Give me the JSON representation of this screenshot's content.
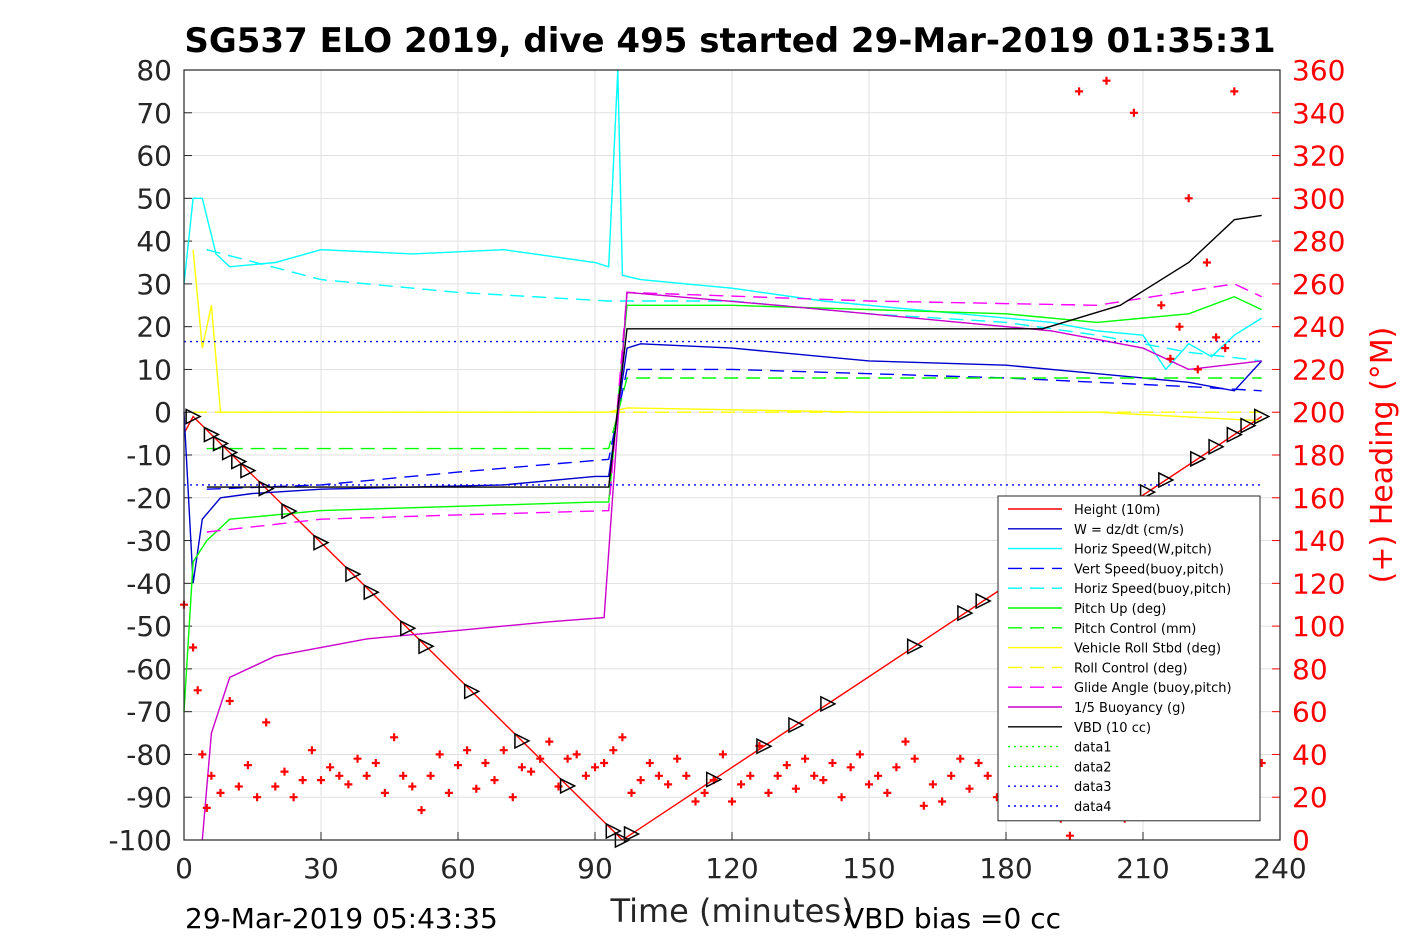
{
  "chart_data": {
    "type": "line",
    "title": "SG537 ELO 2019, dive 495 started 29-Mar-2019 01:35:31",
    "xlabel": "Time (minutes)",
    "ylabel": "",
    "ylabel_right": "(+) Heading (°M)",
    "xlim": [
      0,
      240
    ],
    "ylim": [
      -100,
      80
    ],
    "ylim_right": [
      0,
      360
    ],
    "xticks": [
      "0",
      "30",
      "60",
      "90",
      "120",
      "150",
      "180",
      "210",
      "240"
    ],
    "yticks": [
      "80",
      "70",
      "60",
      "50",
      "40",
      "30",
      "20",
      "10",
      "0",
      "-10",
      "-20",
      "-30",
      "-40",
      "-50",
      "-60",
      "-70",
      "-80",
      "-90",
      "-100"
    ],
    "yticks_right": [
      "360",
      "340",
      "320",
      "300",
      "280",
      "260",
      "240",
      "220",
      "200",
      "180",
      "160",
      "140",
      "120",
      "100",
      "80",
      "60",
      "40",
      "20",
      "0"
    ],
    "grid": true,
    "legend_position": "lower-right",
    "footer_left": "29-Mar-2019 05:43:35",
    "footer_right": "VBD bias =0 cc",
    "series": [
      {
        "name": "Height (10m)",
        "color": "#ff0000",
        "style": "solid",
        "x": [
          0,
          2,
          96,
          236
        ],
        "y": [
          -5,
          -1,
          -100,
          -1
        ]
      },
      {
        "name": "W = dz/dt (cm/s)",
        "color": "#0000cc",
        "style": "solid",
        "x": [
          0,
          2,
          4,
          8,
          15,
          30,
          50,
          70,
          90,
          93,
          97,
          100,
          120,
          150,
          180,
          200,
          220,
          230,
          236
        ],
        "y": [
          0,
          -40,
          -25,
          -20,
          -19,
          -18,
          -17.5,
          -17,
          -15,
          -15,
          15,
          16,
          15,
          12,
          11,
          9,
          7,
          5,
          12
        ]
      },
      {
        "name": "Horiz Speed(W,pitch)",
        "color": "#00ffff",
        "style": "solid",
        "x": [
          0,
          2,
          4,
          7,
          10,
          20,
          30,
          50,
          70,
          90,
          93,
          95,
          96,
          100,
          110,
          120,
          140,
          160,
          180,
          190,
          200,
          210,
          215,
          220,
          225,
          230,
          236
        ],
        "y": [
          30,
          50,
          50,
          37,
          34,
          35,
          38,
          37,
          38,
          35,
          34,
          80,
          32,
          31,
          30,
          29,
          26,
          24,
          22,
          21,
          19,
          18,
          10,
          16,
          13,
          18,
          22
        ]
      },
      {
        "name": "Vert Speed(buoy,pitch)",
        "color": "#0000ff",
        "style": "dashed",
        "x": [
          5,
          30,
          60,
          93,
          97,
          120,
          150,
          180,
          200,
          220,
          236
        ],
        "y": [
          -18,
          -17,
          -14,
          -11,
          10,
          10,
          9,
          8,
          7,
          6,
          5
        ]
      },
      {
        "name": "Horiz Speed(buoy,pitch)",
        "color": "#00ffff",
        "style": "dashed",
        "x": [
          5,
          30,
          60,
          93,
          97,
          120,
          150,
          180,
          200,
          220,
          236
        ],
        "y": [
          38,
          31,
          28,
          26,
          26,
          26,
          23,
          21,
          18,
          14,
          12
        ]
      },
      {
        "name": "Pitch Up (deg)",
        "color": "#00ff00",
        "style": "solid",
        "x": [
          0,
          2,
          5,
          10,
          20,
          30,
          60,
          90,
          93,
          97,
          120,
          150,
          180,
          200,
          220,
          230,
          236
        ],
        "y": [
          -70,
          -35,
          -30,
          -25,
          -24,
          -23,
          -22,
          -21,
          -21,
          25,
          25,
          24,
          23,
          21,
          23,
          27,
          24
        ]
      },
      {
        "name": "Pitch Control (mm)",
        "color": "#00ff00",
        "style": "dashed",
        "x": [
          5,
          93,
          97,
          236
        ],
        "y": [
          -8.5,
          -8.5,
          8,
          8
        ]
      },
      {
        "name": "Vehicle Roll Stbd (deg)",
        "color": "#ffff00",
        "style": "solid",
        "x": [
          2,
          4,
          6,
          8,
          93,
          97,
          150,
          180,
          200,
          236
        ],
        "y": [
          38,
          15,
          25,
          0,
          0,
          1,
          0,
          0,
          0,
          -2
        ]
      },
      {
        "name": "Roll Control (deg)",
        "color": "#ffff00",
        "style": "dashed",
        "x": [
          2,
          93,
          97,
          236
        ],
        "y": [
          0,
          0,
          0,
          0
        ]
      },
      {
        "name": "Glide Angle (buoy,pitch)",
        "color": "#ff00ff",
        "style": "dashed",
        "x": [
          5,
          30,
          60,
          93,
          97,
          150,
          200,
          230,
          236
        ],
        "y": [
          -28,
          -25,
          -24,
          -23,
          28,
          26,
          25,
          30,
          27
        ]
      },
      {
        "name": "1/5 Buoyancy (g)",
        "color": "#cc00cc",
        "style": "solid",
        "x": [
          4,
          6,
          10,
          20,
          40,
          60,
          80,
          92,
          97,
          130,
          170,
          190,
          210,
          220,
          236
        ],
        "y": [
          -100,
          -75,
          -62,
          -57,
          -53,
          -51,
          -49,
          -48,
          28,
          25,
          21,
          19,
          15,
          10,
          12
        ]
      },
      {
        "name": "VBD (10 cc)",
        "color": "#000000",
        "style": "solid",
        "x": [
          5,
          93,
          97,
          188,
          205,
          220,
          230,
          236
        ],
        "y": [
          -17.5,
          -17.5,
          19.5,
          19.5,
          25,
          35,
          45,
          46
        ]
      },
      {
        "name": "data1",
        "color": "#00ff00",
        "style": "dotted",
        "x": [],
        "y": []
      },
      {
        "name": "data2",
        "color": "#00ff00",
        "style": "dotted",
        "x": [],
        "y": []
      },
      {
        "name": "data3",
        "color": "#0000ff",
        "style": "dotted",
        "x": [
          0,
          236
        ],
        "y": [
          16.5,
          16.5
        ]
      },
      {
        "name": "data4",
        "color": "#0000ff",
        "style": "dotted",
        "x": [
          0,
          236
        ],
        "y": [
          -17,
          -17
        ]
      }
    ],
    "heading_series": {
      "color": "#ff0000",
      "marker": "+",
      "axis": "right",
      "x": [
        0,
        2,
        3,
        4,
        5,
        6,
        8,
        10,
        12,
        14,
        16,
        18,
        20,
        22,
        24,
        26,
        28,
        30,
        32,
        34,
        36,
        38,
        40,
        42,
        44,
        46,
        48,
        50,
        52,
        54,
        56,
        58,
        60,
        62,
        64,
        66,
        68,
        70,
        72,
        74,
        76,
        78,
        80,
        82,
        84,
        86,
        88,
        90,
        92,
        94,
        96,
        98,
        100,
        102,
        104,
        106,
        108,
        110,
        112,
        114,
        116,
        118,
        120,
        122,
        124,
        126,
        128,
        130,
        132,
        134,
        136,
        138,
        140,
        142,
        144,
        146,
        148,
        150,
        152,
        154,
        156,
        158,
        160,
        162,
        164,
        166,
        168,
        170,
        172,
        174,
        176,
        178,
        180,
        182,
        184,
        186,
        188,
        190,
        192,
        194,
        196,
        198,
        200,
        202,
        204,
        206,
        208,
        210,
        212,
        214,
        216,
        218,
        220,
        222,
        224,
        226,
        228,
        230,
        232,
        234,
        236
      ],
      "y": [
        110,
        90,
        70,
        40,
        15,
        30,
        22,
        65,
        25,
        35,
        20,
        55,
        25,
        32,
        20,
        28,
        42,
        28,
        34,
        30,
        26,
        38,
        30,
        36,
        22,
        48,
        30,
        25,
        14,
        30,
        40,
        22,
        35,
        42,
        24,
        36,
        28,
        42,
        20,
        34,
        32,
        38,
        46,
        25,
        38,
        40,
        30,
        34,
        36,
        42,
        48,
        22,
        28,
        36,
        30,
        26,
        38,
        30,
        18,
        22,
        28,
        40,
        18,
        26,
        30,
        44,
        22,
        30,
        35,
        24,
        38,
        30,
        28,
        36,
        20,
        34,
        40,
        26,
        30,
        22,
        34,
        46,
        38,
        16,
        26,
        18,
        30,
        38,
        24,
        36,
        30,
        20,
        30,
        28,
        36,
        30,
        22,
        30,
        10,
        2,
        350,
        20,
        12,
        355,
        28,
        10,
        340,
        20,
        12,
        250,
        225,
        240,
        300,
        220,
        270,
        235,
        230,
        350,
        20,
        28,
        36
      ]
    }
  }
}
